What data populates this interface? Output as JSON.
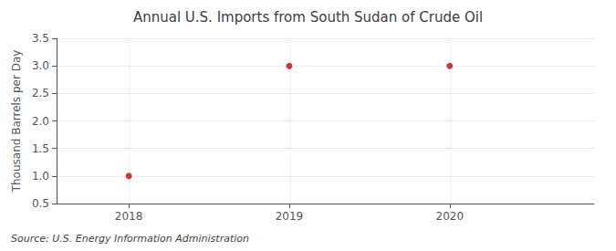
{
  "chart_data": {
    "type": "scatter",
    "title": "Annual U.S. Imports from South Sudan of Crude Oil",
    "ylabel": "Thousand Barrels per Day",
    "source": "Source: U.S. Energy Information Administration",
    "x": [
      2018,
      2019,
      2020
    ],
    "values": [
      1.0,
      3.0,
      3.0
    ],
    "color": "#cc0000",
    "marker": "circle",
    "xlim": [
      2017.55,
      2020.9
    ],
    "ylim": [
      0.5,
      3.5
    ],
    "xticks": [
      2018,
      2019,
      2020
    ],
    "yticks": [
      0.5,
      {
        "value": 1.0,
        "label": "1.0"
      },
      1.5,
      {
        "value": 2.0,
        "label": "2.0"
      },
      2.5,
      {
        "value": 3.0,
        "label": "3.0"
      },
      3.5
    ],
    "grid": true
  }
}
